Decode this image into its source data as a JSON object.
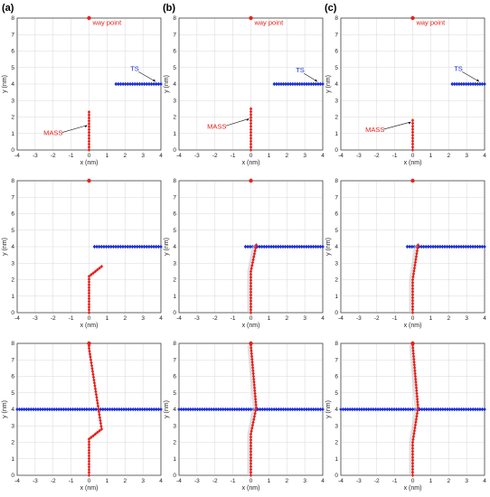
{
  "column_labels": [
    "(a)",
    "(b)",
    "(c)"
  ],
  "colors": {
    "mass": "#e8201c",
    "ts": "#1c2fd6",
    "waypoint": "#e8201c",
    "shadow": "#c8c8c8"
  },
  "chart_data": [
    {
      "type": "line",
      "column": "(a)",
      "row": 1,
      "xlabel": "x (nm)",
      "ylabel": "y (nm)",
      "xlim": [
        -4,
        4
      ],
      "ylim": [
        0,
        8
      ],
      "grid": true,
      "xticks": [
        "-4",
        "-3",
        "-2",
        "-1",
        "0",
        "1",
        "2",
        "3",
        "4"
      ],
      "yticks": [
        "0",
        "1",
        "2",
        "3",
        "4",
        "5",
        "6",
        "7",
        "8"
      ],
      "waypoint": [
        0,
        8
      ],
      "series": [
        {
          "name": "MASS",
          "x": [
            0,
            0
          ],
          "y": [
            0,
            2.3
          ]
        },
        {
          "name": "TS",
          "x": [
            1.5,
            4.0
          ],
          "y": [
            4,
            4
          ]
        }
      ],
      "annotations": [
        {
          "text": "way point",
          "x": 0.2,
          "y": 7.6
        },
        {
          "text": "TS",
          "x": 2.3,
          "y": 4.8
        },
        {
          "text": "MASS",
          "x": -2.0,
          "y": 0.9
        }
      ]
    },
    {
      "type": "line",
      "column": "(b)",
      "row": 1,
      "xlabel": "x (nm)",
      "ylabel": "y (nm)",
      "xlim": [
        -4,
        4
      ],
      "ylim": [
        0,
        8
      ],
      "grid": true,
      "xticks": [
        "-4",
        "-3",
        "-2",
        "-1",
        "0",
        "1",
        "2",
        "3",
        "4"
      ],
      "yticks": [
        "0",
        "1",
        "2",
        "3",
        "4",
        "5",
        "6",
        "7",
        "8"
      ],
      "waypoint": [
        0,
        8
      ],
      "series": [
        {
          "name": "MASS",
          "x": [
            0,
            0
          ],
          "y": [
            0,
            2.5
          ]
        },
        {
          "name": "TS",
          "x": [
            1.3,
            4.0
          ],
          "y": [
            4,
            4
          ]
        }
      ],
      "annotations": [
        {
          "text": "way point",
          "x": 0.2,
          "y": 7.6
        },
        {
          "text": "TS",
          "x": 2.5,
          "y": 4.7
        },
        {
          "text": "MASS",
          "x": -1.9,
          "y": 1.3
        }
      ]
    },
    {
      "type": "line",
      "column": "(c)",
      "row": 1,
      "xlabel": "x (nm)",
      "ylabel": "y (nm)",
      "xlim": [
        -4,
        4
      ],
      "ylim": [
        0,
        8
      ],
      "grid": true,
      "xticks": [
        "-4",
        "-3",
        "-2",
        "-1",
        "0",
        "1",
        "2",
        "3",
        "4"
      ],
      "yticks": [
        "0",
        "1",
        "2",
        "3",
        "4",
        "5",
        "6",
        "7",
        "8"
      ],
      "waypoint": [
        0,
        8
      ],
      "series": [
        {
          "name": "MASS",
          "x": [
            0,
            0
          ],
          "y": [
            0,
            1.8
          ]
        },
        {
          "name": "TS",
          "x": [
            2.2,
            4.0
          ],
          "y": [
            4,
            4
          ]
        }
      ],
      "annotations": [
        {
          "text": "way point",
          "x": 0.2,
          "y": 7.6
        },
        {
          "text": "TS",
          "x": 2.3,
          "y": 4.8
        },
        {
          "text": "MASS",
          "x": -2.1,
          "y": 1.1
        }
      ]
    },
    {
      "type": "line",
      "column": "(a)",
      "row": 2,
      "xlabel": "x (nm)",
      "ylabel": "y (nm)",
      "xlim": [
        -4,
        4
      ],
      "ylim": [
        0,
        8
      ],
      "grid": true,
      "xticks": [
        "-4",
        "-3",
        "-2",
        "-1",
        "0",
        "1",
        "2",
        "3",
        "4"
      ],
      "yticks": [
        "0",
        "1",
        "2",
        "3",
        "4",
        "5",
        "6",
        "7",
        "8"
      ],
      "waypoint": [
        0,
        8
      ],
      "series": [
        {
          "name": "MASS",
          "x": [
            0,
            0,
            0.7
          ],
          "y": [
            0,
            2.2,
            2.8
          ]
        },
        {
          "name": "TS",
          "x": [
            0.3,
            4.0
          ],
          "y": [
            4,
            4
          ]
        }
      ]
    },
    {
      "type": "line",
      "column": "(b)",
      "row": 2,
      "xlabel": "x (nm)",
      "ylabel": "y (nm)",
      "xlim": [
        -4,
        4
      ],
      "ylim": [
        0,
        8
      ],
      "grid": true,
      "xticks": [
        "-4",
        "-3",
        "-2",
        "-1",
        "0",
        "1",
        "2",
        "3",
        "4"
      ],
      "yticks": [
        "0",
        "1",
        "2",
        "3",
        "4",
        "5",
        "6",
        "7",
        "8"
      ],
      "waypoint": [
        0,
        8
      ],
      "series": [
        {
          "name": "MASS",
          "x": [
            0,
            0,
            0.3
          ],
          "y": [
            0,
            2.5,
            4.1
          ]
        },
        {
          "name": "TS",
          "x": [
            -0.3,
            4.0
          ],
          "y": [
            4,
            4
          ]
        }
      ]
    },
    {
      "type": "line",
      "column": "(c)",
      "row": 2,
      "xlabel": "x (nm)",
      "ylabel": "y (nm)",
      "xlim": [
        -4,
        4
      ],
      "ylim": [
        0,
        8
      ],
      "grid": true,
      "xticks": [
        "-4",
        "-3",
        "-2",
        "-1",
        "0",
        "1",
        "2",
        "3",
        "4"
      ],
      "yticks": [
        "0",
        "1",
        "2",
        "3",
        "4",
        "5",
        "6",
        "7",
        "8"
      ],
      "waypoint": [
        0,
        8
      ],
      "series": [
        {
          "name": "MASS",
          "x": [
            0,
            0,
            0.3
          ],
          "y": [
            0,
            2.0,
            4.1
          ]
        },
        {
          "name": "TS",
          "x": [
            -0.3,
            4.0
          ],
          "y": [
            4,
            4
          ]
        }
      ]
    },
    {
      "type": "line",
      "column": "(a)",
      "row": 3,
      "xlabel": "x (nm)",
      "ylabel": "y (nm)",
      "xlim": [
        -4,
        4
      ],
      "ylim": [
        0,
        8
      ],
      "grid": true,
      "xticks": [
        "-4",
        "-3",
        "-2",
        "-1",
        "0",
        "1",
        "2",
        "3",
        "4"
      ],
      "yticks": [
        "0",
        "1",
        "2",
        "3",
        "4",
        "5",
        "6",
        "7",
        "8"
      ],
      "waypoint": [
        0,
        8
      ],
      "series": [
        {
          "name": "MASS",
          "x": [
            0,
            0,
            0.7,
            0,
            0
          ],
          "y": [
            0,
            2.2,
            2.8,
            7.7,
            8.0
          ]
        },
        {
          "name": "TS",
          "x": [
            -4.0,
            4.0
          ],
          "y": [
            4,
            4
          ]
        }
      ]
    },
    {
      "type": "line",
      "column": "(b)",
      "row": 3,
      "xlabel": "x (nm)",
      "ylabel": "y (nm)",
      "xlim": [
        -4,
        4
      ],
      "ylim": [
        0,
        8
      ],
      "grid": true,
      "xticks": [
        "-4",
        "-3",
        "-2",
        "-1",
        "0",
        "1",
        "2",
        "3",
        "4"
      ],
      "yticks": [
        "0",
        "1",
        "2",
        "3",
        "4",
        "5",
        "6",
        "7",
        "8"
      ],
      "waypoint": [
        0,
        8
      ],
      "series": [
        {
          "name": "MASS",
          "x": [
            0,
            0,
            0.3,
            0
          ],
          "y": [
            0,
            2.5,
            4.1,
            7.9
          ]
        },
        {
          "name": "TS",
          "x": [
            -4.0,
            4.0
          ],
          "y": [
            4,
            4
          ]
        }
      ]
    },
    {
      "type": "line",
      "column": "(c)",
      "row": 3,
      "xlabel": "x (nm)",
      "ylabel": "y (nm)",
      "xlim": [
        -4,
        4
      ],
      "ylim": [
        0,
        8
      ],
      "grid": true,
      "xticks": [
        "-4",
        "-3",
        "-2",
        "-1",
        "0",
        "1",
        "2",
        "3",
        "4"
      ],
      "yticks": [
        "0",
        "1",
        "2",
        "3",
        "4",
        "5",
        "6",
        "7",
        "8"
      ],
      "waypoint": [
        0,
        8
      ],
      "series": [
        {
          "name": "MASS",
          "x": [
            0,
            0,
            0.3,
            0
          ],
          "y": [
            0,
            2.0,
            4.1,
            7.9
          ]
        },
        {
          "name": "TS",
          "x": [
            -4.0,
            4.0
          ],
          "y": [
            4,
            4
          ]
        }
      ]
    }
  ]
}
